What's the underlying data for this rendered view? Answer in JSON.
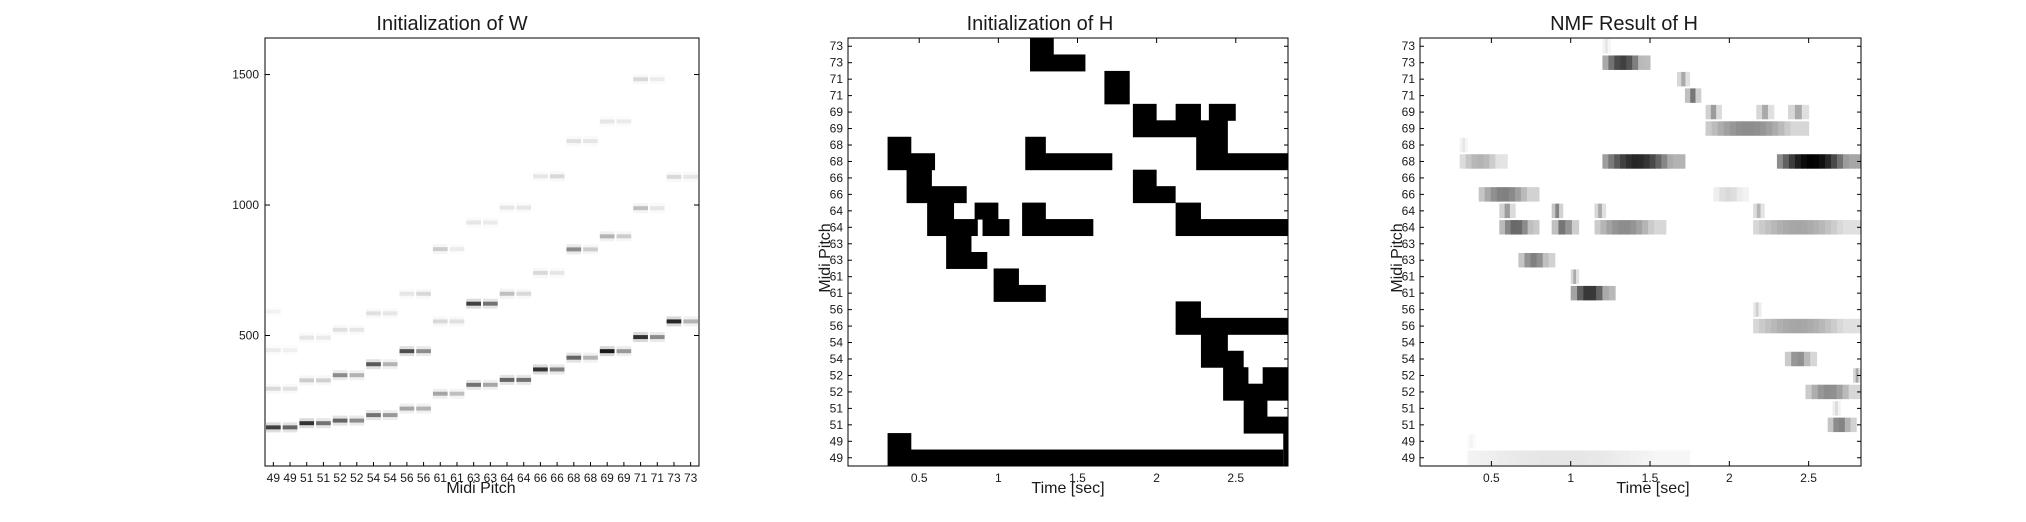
{
  "panels": {
    "w": {
      "title": "Initialization of W",
      "xlabel": "Midi Pitch"
    },
    "h": {
      "title": "Initialization of H",
      "xlabel": "Time [sec]",
      "ylabel": "Midi Pitch"
    },
    "nmf": {
      "title": "NMF Result of H",
      "xlabel": "Time [sec]",
      "ylabel": "Midi Pitch"
    }
  },
  "chart_data": [
    {
      "type": "heatmap",
      "title": "Initialization of W",
      "xlabel": "Midi Pitch",
      "ylabel": "",
      "x_tick_labels": [
        "49",
        "49",
        "51",
        "51",
        "52",
        "52",
        "54",
        "54",
        "56",
        "56",
        "61",
        "61",
        "63",
        "63",
        "64",
        "64",
        "66",
        "66",
        "68",
        "68",
        "69",
        "69",
        "71",
        "71",
        "73",
        "73"
      ],
      "y_ticks": [
        500,
        1000,
        1500
      ],
      "ylim": [
        0,
        1640
      ],
      "colormap": "gray_r",
      "peak_bins": [
        {
          "col": 0,
          "peaks": [
            [
              148,
              0.75
            ],
            [
              296,
              0.15
            ],
            [
              444,
              0.08
            ],
            [
              592,
              0.05
            ]
          ]
        },
        {
          "col": 1,
          "peaks": [
            [
              148,
              0.6
            ],
            [
              296,
              0.12
            ],
            [
              444,
              0.06
            ]
          ]
        },
        {
          "col": 2,
          "peaks": [
            [
              164,
              0.8
            ],
            [
              328,
              0.2
            ],
            [
              492,
              0.1
            ]
          ]
        },
        {
          "col": 3,
          "peaks": [
            [
              164,
              0.55
            ],
            [
              328,
              0.18
            ],
            [
              492,
              0.08
            ]
          ]
        },
        {
          "col": 4,
          "peaks": [
            [
              174,
              0.6
            ],
            [
              348,
              0.45
            ],
            [
              522,
              0.12
            ]
          ]
        },
        {
          "col": 5,
          "peaks": [
            [
              174,
              0.45
            ],
            [
              348,
              0.3
            ],
            [
              522,
              0.1
            ]
          ]
        },
        {
          "col": 6,
          "peaks": [
            [
              195,
              0.55
            ],
            [
              390,
              0.65
            ],
            [
              585,
              0.12
            ]
          ]
        },
        {
          "col": 7,
          "peaks": [
            [
              195,
              0.4
            ],
            [
              390,
              0.3
            ],
            [
              585,
              0.1
            ]
          ]
        },
        {
          "col": 8,
          "peaks": [
            [
              220,
              0.35
            ],
            [
              440,
              0.7
            ],
            [
              660,
              0.1
            ]
          ]
        },
        {
          "col": 9,
          "peaks": [
            [
              220,
              0.3
            ],
            [
              440,
              0.45
            ],
            [
              660,
              0.15
            ]
          ]
        },
        {
          "col": 10,
          "peaks": [
            [
              277,
              0.35
            ],
            [
              554,
              0.15
            ],
            [
              831,
              0.2
            ]
          ]
        },
        {
          "col": 11,
          "peaks": [
            [
              277,
              0.25
            ],
            [
              554,
              0.12
            ],
            [
              831,
              0.08
            ]
          ]
        },
        {
          "col": 12,
          "peaks": [
            [
              311,
              0.55
            ],
            [
              622,
              0.75
            ],
            [
              933,
              0.1
            ]
          ]
        },
        {
          "col": 13,
          "peaks": [
            [
              311,
              0.35
            ],
            [
              622,
              0.55
            ],
            [
              933,
              0.08
            ]
          ]
        },
        {
          "col": 14,
          "peaks": [
            [
              330,
              0.6
            ],
            [
              660,
              0.25
            ],
            [
              990,
              0.1
            ]
          ]
        },
        {
          "col": 15,
          "peaks": [
            [
              330,
              0.55
            ],
            [
              660,
              0.15
            ],
            [
              990,
              0.1
            ]
          ]
        },
        {
          "col": 16,
          "peaks": [
            [
              370,
              0.8
            ],
            [
              740,
              0.15
            ],
            [
              1110,
              0.1
            ]
          ]
        },
        {
          "col": 17,
          "peaks": [
            [
              370,
              0.5
            ],
            [
              740,
              0.1
            ],
            [
              1110,
              0.15
            ]
          ]
        },
        {
          "col": 18,
          "peaks": [
            [
              415,
              0.6
            ],
            [
              830,
              0.45
            ],
            [
              1245,
              0.12
            ]
          ]
        },
        {
          "col": 19,
          "peaks": [
            [
              415,
              0.3
            ],
            [
              830,
              0.2
            ],
            [
              1245,
              0.1
            ]
          ]
        },
        {
          "col": 20,
          "peaks": [
            [
              440,
              0.9
            ],
            [
              880,
              0.3
            ],
            [
              1320,
              0.1
            ]
          ]
        },
        {
          "col": 21,
          "peaks": [
            [
              440,
              0.4
            ],
            [
              880,
              0.2
            ],
            [
              1320,
              0.08
            ]
          ]
        },
        {
          "col": 22,
          "peaks": [
            [
              494,
              0.8
            ],
            [
              988,
              0.25
            ],
            [
              1482,
              0.15
            ]
          ]
        },
        {
          "col": 23,
          "peaks": [
            [
              494,
              0.45
            ],
            [
              988,
              0.1
            ],
            [
              1482,
              0.08
            ]
          ]
        },
        {
          "col": 24,
          "peaks": [
            [
              554,
              0.85
            ],
            [
              1108,
              0.15
            ],
            [
              1662,
              0.1
            ]
          ]
        },
        {
          "col": 25,
          "peaks": [
            [
              554,
              0.3
            ],
            [
              1108,
              0.1
            ],
            [
              1662,
              0.05
            ]
          ]
        }
      ]
    },
    {
      "type": "heatmap",
      "title": "Initialization of H",
      "xlabel": "Time [sec]",
      "ylabel": "Midi Pitch",
      "x_ticks": [
        0.5,
        1,
        1.5,
        2,
        2.5
      ],
      "xlim": [
        0.05,
        2.83
      ],
      "y_tick_labels": [
        "73",
        "73",
        "71",
        "71",
        "69",
        "69",
        "68",
        "68",
        "66",
        "66",
        "64",
        "64",
        "63",
        "63",
        "61",
        "61",
        "56",
        "56",
        "54",
        "54",
        "52",
        "52",
        "51",
        "51",
        "49",
        "49"
      ],
      "colormap": "binary",
      "blocks": [
        {
          "row": 0,
          "start": 1.2,
          "end": 1.35
        },
        {
          "row": 1,
          "start": 1.2,
          "end": 1.55
        },
        {
          "row": 2,
          "start": 1.67,
          "end": 1.83
        },
        {
          "row": 3,
          "start": 1.67,
          "end": 1.83
        },
        {
          "row": 4,
          "start": 1.85,
          "end": 2.0
        },
        {
          "row": 4,
          "start": 2.12,
          "end": 2.28
        },
        {
          "row": 4,
          "start": 2.33,
          "end": 2.5
        },
        {
          "row": 5,
          "start": 1.85,
          "end": 2.45
        },
        {
          "row": 6,
          "start": 0.3,
          "end": 0.45
        },
        {
          "row": 6,
          "start": 1.17,
          "end": 1.3
        },
        {
          "row": 6,
          "start": 2.25,
          "end": 2.45
        },
        {
          "row": 7,
          "start": 0.3,
          "end": 0.6
        },
        {
          "row": 7,
          "start": 1.17,
          "end": 1.72
        },
        {
          "row": 7,
          "start": 2.25,
          "end": 2.83
        },
        {
          "row": 8,
          "start": 0.42,
          "end": 0.58
        },
        {
          "row": 8,
          "start": 1.85,
          "end": 2.0
        },
        {
          "row": 9,
          "start": 0.42,
          "end": 0.8
        },
        {
          "row": 9,
          "start": 1.85,
          "end": 2.12
        },
        {
          "row": 10,
          "start": 0.55,
          "end": 0.72
        },
        {
          "row": 10,
          "start": 0.85,
          "end": 1.0
        },
        {
          "row": 10,
          "start": 1.15,
          "end": 1.3
        },
        {
          "row": 10,
          "start": 2.12,
          "end": 2.28
        },
        {
          "row": 11,
          "start": 0.55,
          "end": 0.87
        },
        {
          "row": 11,
          "start": 0.9,
          "end": 1.07
        },
        {
          "row": 11,
          "start": 1.15,
          "end": 1.6
        },
        {
          "row": 11,
          "start": 2.12,
          "end": 2.83
        },
        {
          "row": 12,
          "start": 0.67,
          "end": 0.83
        },
        {
          "row": 13,
          "start": 0.67,
          "end": 0.93
        },
        {
          "row": 14,
          "start": 0.97,
          "end": 1.13
        },
        {
          "row": 15,
          "start": 0.97,
          "end": 1.3
        },
        {
          "row": 16,
          "start": 2.12,
          "end": 2.28
        },
        {
          "row": 17,
          "start": 2.12,
          "end": 2.83
        },
        {
          "row": 18,
          "start": 2.28,
          "end": 2.45
        },
        {
          "row": 19,
          "start": 2.28,
          "end": 2.55
        },
        {
          "row": 20,
          "start": 2.42,
          "end": 2.58
        },
        {
          "row": 20,
          "start": 2.67,
          "end": 2.83
        },
        {
          "row": 21,
          "start": 2.42,
          "end": 2.83
        },
        {
          "row": 22,
          "start": 2.55,
          "end": 2.7
        },
        {
          "row": 23,
          "start": 2.55,
          "end": 2.83
        },
        {
          "row": 24,
          "start": 0.3,
          "end": 0.45
        },
        {
          "row": 24,
          "start": 2.8,
          "end": 2.83
        },
        {
          "row": 25,
          "start": 0.3,
          "end": 2.8
        },
        {
          "row": 25,
          "start": 2.8,
          "end": 2.83
        }
      ]
    },
    {
      "type": "heatmap",
      "title": "NMF Result of H",
      "xlabel": "Time [sec]",
      "ylabel": "Midi Pitch",
      "x_ticks": [
        0.5,
        1,
        1.5,
        2,
        2.5
      ],
      "xlim": [
        0.05,
        2.83
      ],
      "y_tick_labels": [
        "73",
        "73",
        "71",
        "71",
        "69",
        "69",
        "68",
        "68",
        "66",
        "66",
        "64",
        "64",
        "63",
        "63",
        "61",
        "61",
        "56",
        "56",
        "54",
        "54",
        "52",
        "52",
        "51",
        "51",
        "49",
        "49"
      ],
      "colormap": "gray_r",
      "activations": [
        {
          "row": 0,
          "start": 1.2,
          "end": 1.25,
          "peak": 0.1
        },
        {
          "row": 1,
          "start": 1.2,
          "end": 1.5,
          "peak": 0.75
        },
        {
          "row": 2,
          "start": 1.67,
          "end": 1.75,
          "peak": 0.35
        },
        {
          "row": 3,
          "start": 1.72,
          "end": 1.82,
          "peak": 0.55
        },
        {
          "row": 4,
          "start": 1.85,
          "end": 1.95,
          "peak": 0.4
        },
        {
          "row": 4,
          "start": 2.17,
          "end": 2.28,
          "peak": 0.35
        },
        {
          "row": 4,
          "start": 2.37,
          "end": 2.5,
          "peak": 0.35
        },
        {
          "row": 5,
          "start": 1.85,
          "end": 2.5,
          "peak": 0.45
        },
        {
          "row": 6,
          "start": 0.3,
          "end": 0.35,
          "peak": 0.1
        },
        {
          "row": 7,
          "start": 0.3,
          "end": 0.6,
          "peak": 0.3
        },
        {
          "row": 7,
          "start": 1.2,
          "end": 1.72,
          "peak": 0.85
        },
        {
          "row": 7,
          "start": 2.3,
          "end": 2.83,
          "peak": 1.0
        },
        {
          "row": 9,
          "start": 0.42,
          "end": 0.8,
          "peak": 0.5
        },
        {
          "row": 9,
          "start": 1.9,
          "end": 2.12,
          "peak": 0.15
        },
        {
          "row": 10,
          "start": 0.55,
          "end": 0.65,
          "peak": 0.4
        },
        {
          "row": 10,
          "start": 0.88,
          "end": 0.95,
          "peak": 0.5
        },
        {
          "row": 10,
          "start": 1.15,
          "end": 1.22,
          "peak": 0.35
        },
        {
          "row": 10,
          "start": 2.15,
          "end": 2.22,
          "peak": 0.3
        },
        {
          "row": 11,
          "start": 0.55,
          "end": 0.8,
          "peak": 0.6
        },
        {
          "row": 11,
          "start": 0.88,
          "end": 1.05,
          "peak": 0.55
        },
        {
          "row": 11,
          "start": 1.15,
          "end": 1.6,
          "peak": 0.45
        },
        {
          "row": 11,
          "start": 2.15,
          "end": 2.83,
          "peak": 0.35
        },
        {
          "row": 13,
          "start": 0.67,
          "end": 0.9,
          "peak": 0.5
        },
        {
          "row": 14,
          "start": 1.0,
          "end": 1.05,
          "peak": 0.35
        },
        {
          "row": 15,
          "start": 1.0,
          "end": 1.28,
          "peak": 0.8
        },
        {
          "row": 16,
          "start": 2.15,
          "end": 2.2,
          "peak": 0.2
        },
        {
          "row": 17,
          "start": 2.15,
          "end": 2.83,
          "peak": 0.35
        },
        {
          "row": 19,
          "start": 2.35,
          "end": 2.55,
          "peak": 0.45
        },
        {
          "row": 20,
          "start": 2.78,
          "end": 2.83,
          "peak": 0.35
        },
        {
          "row": 21,
          "start": 2.48,
          "end": 2.83,
          "peak": 0.45
        },
        {
          "row": 22,
          "start": 2.65,
          "end": 2.7,
          "peak": 0.15
        },
        {
          "row": 23,
          "start": 2.62,
          "end": 2.8,
          "peak": 0.5
        },
        {
          "row": 24,
          "start": 0.35,
          "end": 0.4,
          "peak": 0.05
        },
        {
          "row": 25,
          "start": 0.35,
          "end": 1.75,
          "peak": 0.1
        }
      ]
    }
  ]
}
